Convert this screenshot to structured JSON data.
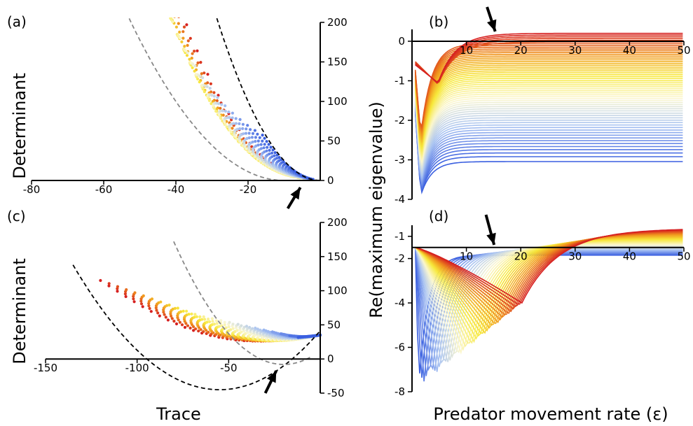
{
  "figure": {
    "y_label_left": "Determinant",
    "x_label_left": "Trace",
    "y_label_right": "Re(maximum eigenvalue)",
    "x_label_right": "Predator movement rate (ε)"
  },
  "colors": {
    "low": "#3a5fe0",
    "mid_blue": "#aac4f2",
    "pale": "#fbf7cf",
    "yellow": "#f7e83a",
    "orange": "#f0941d",
    "high": "#d62020",
    "reference_curve": "#000000",
    "shifted_curve": "#888888",
    "arrow": "#000000"
  },
  "chart_data": [
    {
      "panel": "(a)",
      "type": "scatter",
      "xlabel": "Trace",
      "ylabel": "Determinant",
      "xlim": [
        -80,
        0
      ],
      "ylim": [
        0,
        200
      ],
      "xticks": [
        "-80",
        "-60",
        "-40",
        "-20",
        "0"
      ],
      "yticks": [
        "0",
        "50",
        "100",
        "150",
        "200"
      ],
      "reference_curves": [
        {
          "style": "dashed-black",
          "relation": "Determinant = Trace^2/4"
        },
        {
          "style": "dashed-grey",
          "relation": "Determinant = (Trace+20)^2/4"
        }
      ],
      "point_families": 28,
      "arrow_at_trace": -5
    },
    {
      "panel": "(b)",
      "type": "line",
      "xlabel": "Predator movement rate (ε)",
      "ylabel": "Re(maximum eigenvalue)",
      "xlim": [
        0,
        50
      ],
      "ylim": [
        -4,
        0.3
      ],
      "xticks": [
        "10",
        "20",
        "30",
        "40",
        "50"
      ],
      "yticks": [
        "0",
        "-1",
        "-2",
        "-3",
        "-4"
      ],
      "series_count": 60,
      "plateau_range": [
        -3.0,
        0.2
      ],
      "arrow_at_epsilon": 15
    },
    {
      "panel": "(c)",
      "type": "scatter",
      "xlabel": "Trace",
      "ylabel": "Determinant",
      "xlim": [
        -150,
        0
      ],
      "ylim": [
        -50,
        200
      ],
      "xticks": [
        "-150",
        "-100",
        "-50",
        "0"
      ],
      "yticks": [
        "-50",
        "0",
        "50",
        "100",
        "150",
        "200"
      ],
      "reference_curves": [
        {
          "style": "dashed-black",
          "relation": "Determinant = Trace^2/4 + 0.6*Trace"
        },
        {
          "style": "dashed-grey",
          "relation": "Determinant = (Trace+25)^2/4"
        }
      ],
      "point_families": 24,
      "convergence_point": [
        0,
        35
      ],
      "arrow_at_trace": -12
    },
    {
      "panel": "(d)",
      "type": "line",
      "xlabel": "Predator movement rate (ε)",
      "ylabel": "Re(maximum eigenvalue)",
      "xlim": [
        0,
        50
      ],
      "ylim": [
        -8,
        -0.5
      ],
      "xticks": [
        "10",
        "20",
        "30",
        "40",
        "50"
      ],
      "yticks": [
        "-1",
        "-2",
        "-4",
        "-6",
        "-8"
      ],
      "series_count": 40,
      "arrow_at_epsilon": 15
    }
  ]
}
